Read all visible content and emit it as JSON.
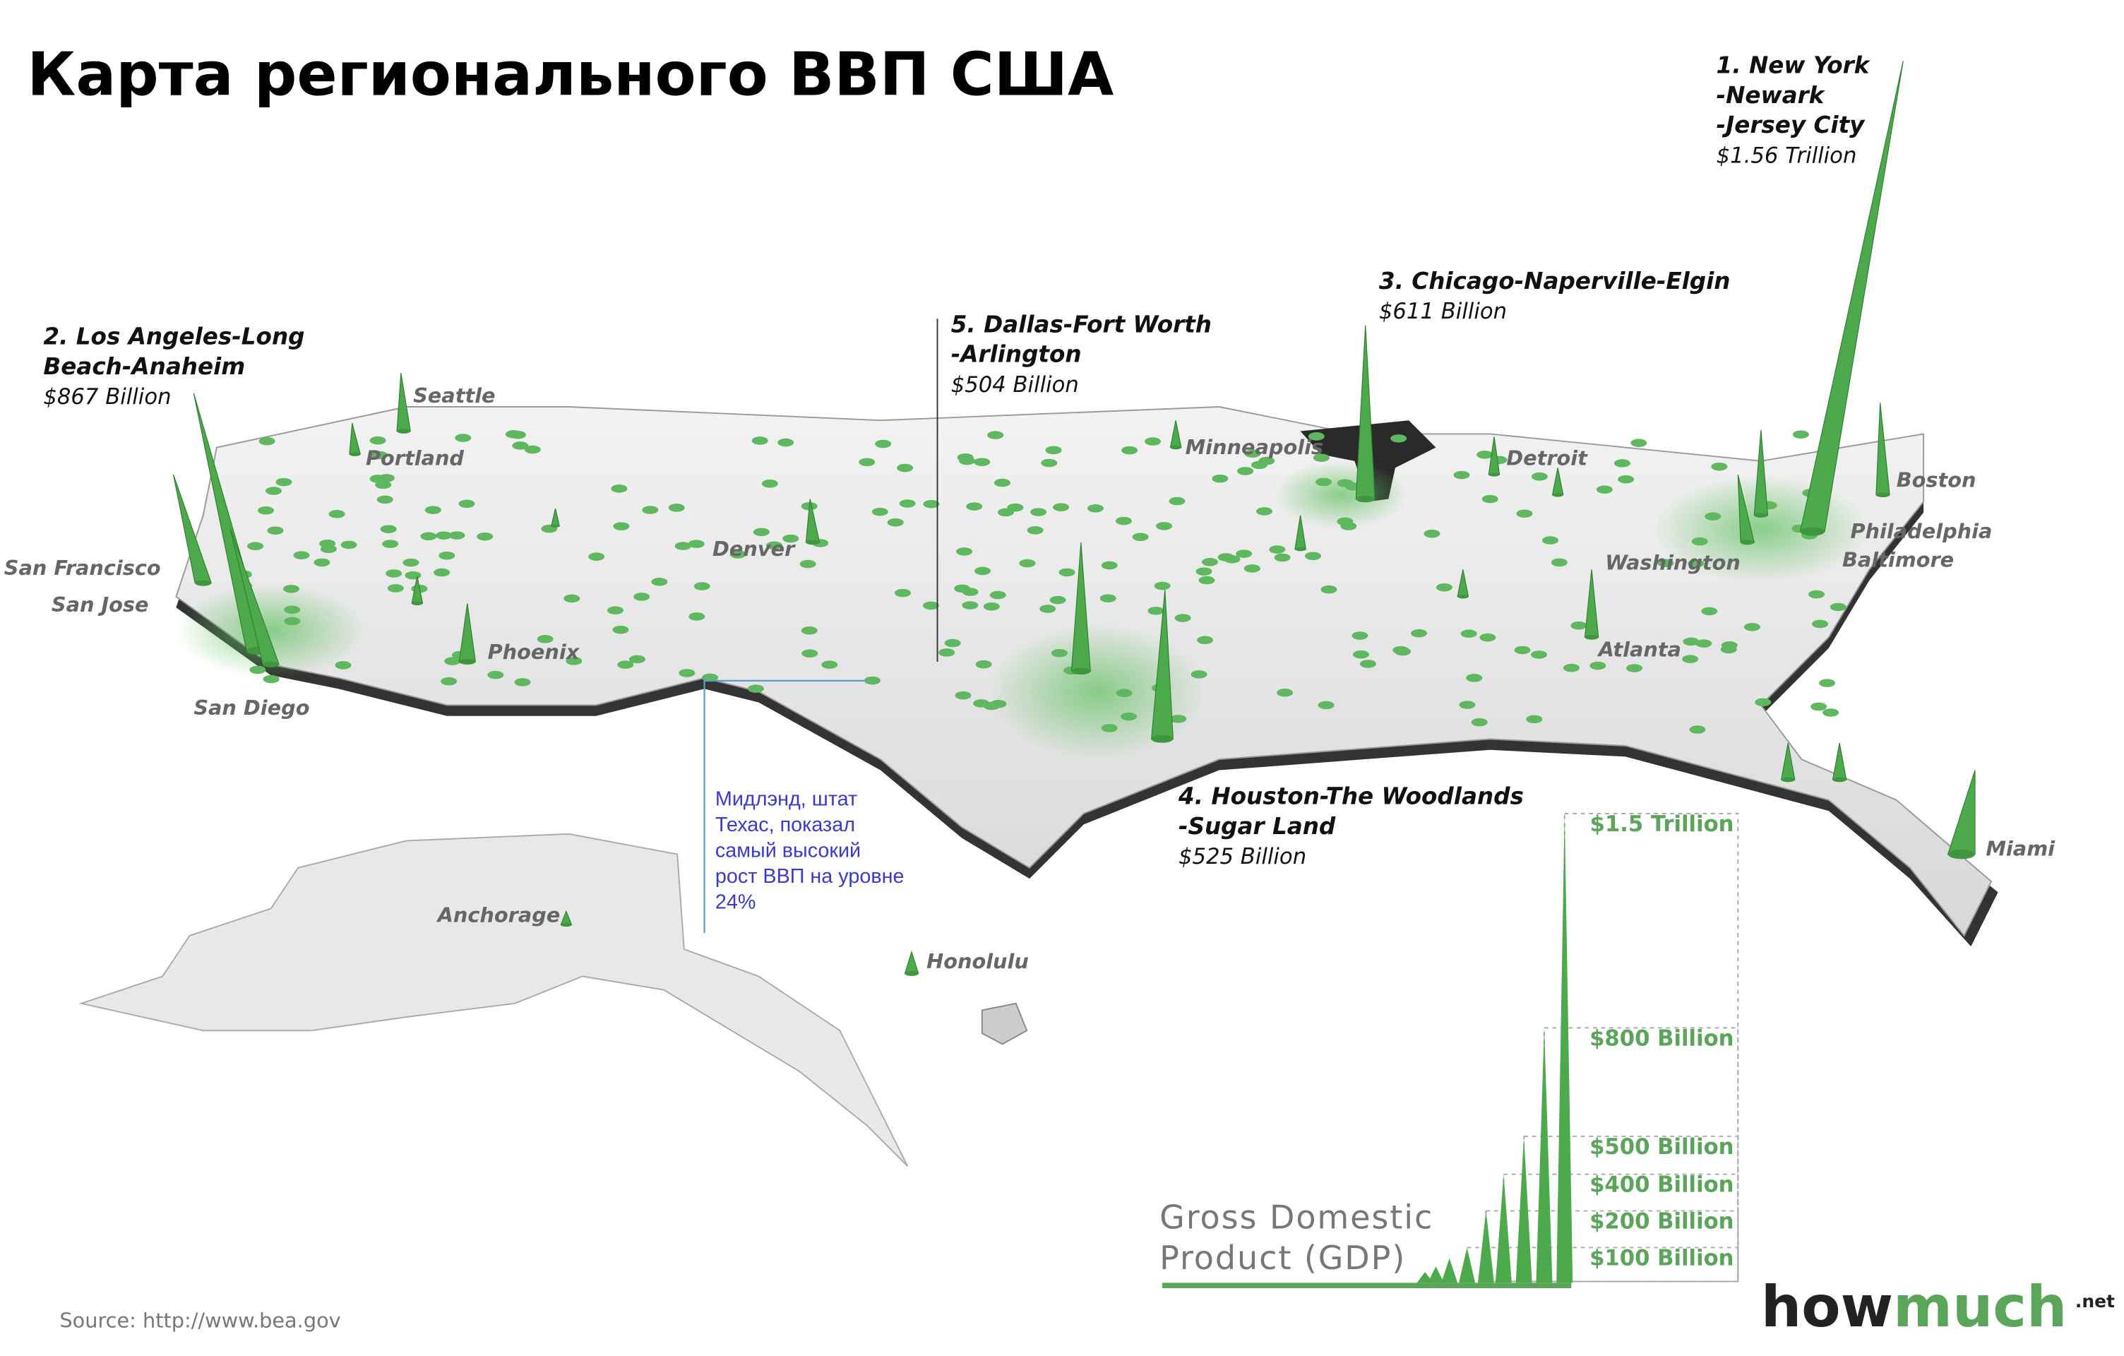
{
  "title": "Карта регионального ВВП США",
  "top_metros": [
    {
      "lines": [
        "1. New York",
        "-Newark",
        "-Jersey City"
      ],
      "gdp": "$1.56 Trillion"
    },
    {
      "lines": [
        "2. Los Angeles-Long",
        "Beach-Anaheim"
      ],
      "gdp": "$867 Billion"
    },
    {
      "lines": [
        "3. Chicago-Naperville-Elgin"
      ],
      "gdp": "$611 Billion"
    },
    {
      "lines": [
        "4. Houston-The Woodlands",
        "-Sugar Land"
      ],
      "gdp": "$525 Billion"
    },
    {
      "lines": [
        "5. Dallas-Fort Worth",
        "-Arlington"
      ],
      "gdp": "$504 Billion"
    }
  ],
  "cities": [
    "Seattle",
    "Portland",
    "San Francisco",
    "San Jose",
    "San Diego",
    "Phoenix",
    "Denver",
    "Minneapolis",
    "Detroit",
    "Boston",
    "Philadelphia",
    "Baltimore",
    "Washington",
    "Atlanta",
    "Miami",
    "Anchorage",
    "Honolulu"
  ],
  "annotation": [
    "Мидлэнд, штат",
    "Техас, показал",
    "самый высокий",
    "рост ВВП на уровне",
    "24%"
  ],
  "legend": {
    "title": [
      "Gross Domestic",
      "Product (GDP)"
    ],
    "levels": [
      "$1.5 Trillion",
      "$800 Billion",
      "$500 Billion",
      "$400 Billion",
      "$200 Billion",
      "$100 Billion"
    ]
  },
  "source": "Source: http://www.bea.gov",
  "logo": {
    "how": "how",
    "much": "much",
    "suffix": ".net"
  }
}
